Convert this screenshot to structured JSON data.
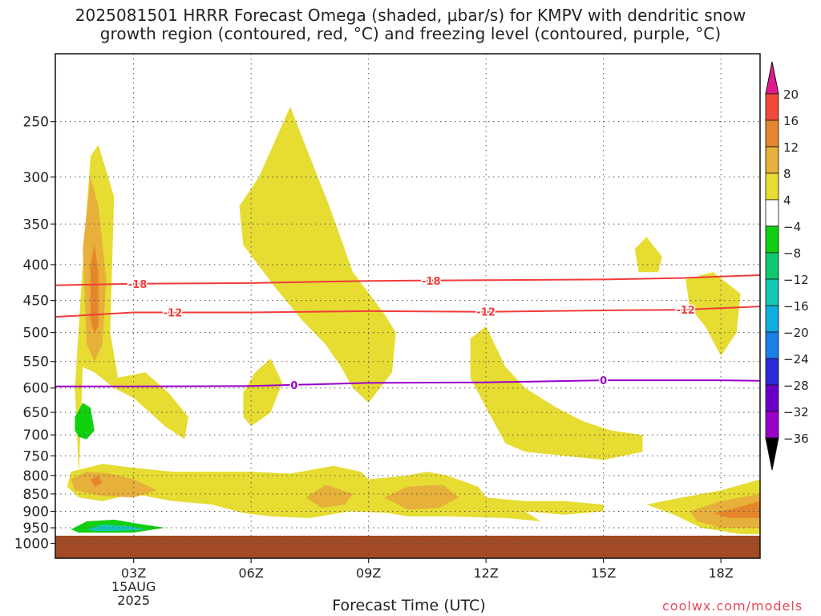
{
  "title": {
    "line1": "2025081501 HRRR Forecast Omega (shaded, μbar/s) for KMPV with dendritic snow",
    "line2": "growth region (contoured, red, °C) and freezing level (contoured, purple, °C)"
  },
  "credit": "coolwx.com/models",
  "chart_data": {
    "type": "heatmap",
    "title": "2025081501 HRRR Forecast Omega (shaded, μbar/s) for KMPV with dendritic snow growth region (contoured, red, °C) and freezing level (contoured, purple, °C)",
    "xlabel": "Forecast Time (UTC)",
    "ylabel": "",
    "x_range_hours_utc": [
      1,
      19
    ],
    "x_ticks": [
      {
        "hour": 3,
        "label": "03Z",
        "sub": [
          "15AUG",
          "2025"
        ]
      },
      {
        "hour": 6,
        "label": "06Z"
      },
      {
        "hour": 9,
        "label": "09Z"
      },
      {
        "hour": 12,
        "label": "12Z"
      },
      {
        "hour": 15,
        "label": "15Z"
      },
      {
        "hour": 18,
        "label": "18Z"
      }
    ],
    "y_scale": "log",
    "y_range_hPa": [
      1050,
      200
    ],
    "y_ticks": [
      250,
      300,
      350,
      400,
      450,
      500,
      550,
      600,
      650,
      700,
      750,
      800,
      850,
      900,
      950,
      1000
    ],
    "grid": true,
    "colorbar": {
      "levels": [
        -36,
        -32,
        -28,
        -24,
        -20,
        -16,
        -12,
        -8,
        -4,
        4,
        8,
        12,
        16,
        20
      ],
      "colors": [
        "#a7a7a7",
        "#9b00c8",
        "#6a00c8",
        "#2b2bd8",
        "#1a7fe6",
        "#10aee0",
        "#12c8b4",
        "#10c870",
        "#10d010",
        "#ffffff",
        "#e8dc32",
        "#e6b03a",
        "#e6862c",
        "#f04a3a",
        "#e01a8c"
      ]
    },
    "omega_regions": [
      {
        "level": 4,
        "color": "#e6dc32",
        "points": [
          [
            1.6,
            800
          ],
          [
            1.5,
            600
          ],
          [
            1.7,
            400
          ],
          [
            1.9,
            280
          ],
          [
            2.1,
            270
          ],
          [
            2.5,
            320
          ],
          [
            2.4,
            500
          ],
          [
            2.6,
            580
          ],
          [
            3.3,
            570
          ],
          [
            3.9,
            610
          ],
          [
            4.4,
            660
          ],
          [
            4.3,
            710
          ],
          [
            3.8,
            680
          ],
          [
            3.0,
            620
          ],
          [
            2.5,
            600
          ],
          [
            2.0,
            570
          ],
          [
            1.7,
            560
          ]
        ]
      },
      {
        "level": 8,
        "color": "#e6b03a",
        "points": [
          [
            1.8,
            520
          ],
          [
            1.7,
            380
          ],
          [
            1.9,
            300
          ],
          [
            2.1,
            330
          ],
          [
            2.3,
            420
          ],
          [
            2.2,
            520
          ],
          [
            2.0,
            550
          ]
        ]
      },
      {
        "level": 12,
        "color": "#e6862c",
        "points": [
          [
            1.9,
            480
          ],
          [
            1.9,
            400
          ],
          [
            2.0,
            375
          ],
          [
            2.1,
            410
          ],
          [
            2.1,
            490
          ],
          [
            2.0,
            500
          ]
        ]
      },
      {
        "level": 4,
        "color": "#e6dc32",
        "points": [
          [
            5.7,
            330
          ],
          [
            6.2,
            300
          ],
          [
            7.0,
            238
          ],
          [
            7.6,
            290
          ],
          [
            8.0,
            330
          ],
          [
            8.6,
            410
          ],
          [
            9.4,
            470
          ],
          [
            9.7,
            500
          ],
          [
            9.6,
            570
          ],
          [
            9.0,
            630
          ],
          [
            8.6,
            600
          ],
          [
            8.3,
            560
          ],
          [
            7.9,
            520
          ],
          [
            7.3,
            480
          ],
          [
            6.6,
            430
          ],
          [
            5.8,
            375
          ]
        ]
      },
      {
        "level": 4,
        "color": "#e6dc32",
        "points": [
          [
            5.8,
            660
          ],
          [
            5.8,
            610
          ],
          [
            6.1,
            570
          ],
          [
            6.5,
            545
          ],
          [
            6.8,
            590
          ],
          [
            6.5,
            650
          ],
          [
            6.0,
            680
          ]
        ]
      },
      {
        "level": 4,
        "color": "#e6dc32",
        "points": [
          [
            11.6,
            510
          ],
          [
            12.0,
            490
          ],
          [
            12.5,
            560
          ],
          [
            13.0,
            600
          ],
          [
            13.8,
            640
          ],
          [
            14.5,
            670
          ],
          [
            15.2,
            690
          ],
          [
            16.0,
            700
          ],
          [
            16.0,
            740
          ],
          [
            15.0,
            760
          ],
          [
            14.0,
            750
          ],
          [
            13.0,
            740
          ],
          [
            12.5,
            720
          ],
          [
            12.0,
            640
          ],
          [
            11.6,
            580
          ]
        ]
      },
      {
        "level": 4,
        "color": "#e6dc32",
        "points": [
          [
            15.8,
            380
          ],
          [
            16.1,
            365
          ],
          [
            16.5,
            390
          ],
          [
            16.4,
            410
          ],
          [
            15.9,
            410
          ]
        ]
      },
      {
        "level": 4,
        "color": "#e6dc32",
        "points": [
          [
            17.1,
            420
          ],
          [
            17.8,
            410
          ],
          [
            18.5,
            440
          ],
          [
            18.4,
            500
          ],
          [
            18.0,
            540
          ],
          [
            17.6,
            490
          ],
          [
            17.2,
            460
          ]
        ]
      },
      {
        "level": 4,
        "color": "#e6dc32",
        "points": [
          [
            1.3,
            830
          ],
          [
            1.4,
            790
          ],
          [
            2.2,
            770
          ],
          [
            3.0,
            780
          ],
          [
            4.0,
            790
          ],
          [
            5.0,
            790
          ],
          [
            6.0,
            790
          ],
          [
            7.0,
            795
          ],
          [
            8.1,
            775
          ],
          [
            8.8,
            790
          ],
          [
            9.0,
            810
          ],
          [
            10.0,
            800
          ],
          [
            10.5,
            790
          ],
          [
            11.0,
            800
          ],
          [
            11.8,
            830
          ],
          [
            12.0,
            860
          ],
          [
            13.0,
            870
          ],
          [
            14.0,
            870
          ],
          [
            15.0,
            880
          ],
          [
            15.0,
            900
          ],
          [
            14.0,
            910
          ],
          [
            13.0,
            900
          ],
          [
            13.4,
            930
          ],
          [
            12.5,
            920
          ],
          [
            11.0,
            915
          ],
          [
            10.0,
            915
          ],
          [
            9.5,
            905
          ],
          [
            8.5,
            900
          ],
          [
            7.5,
            920
          ],
          [
            6.5,
            915
          ],
          [
            5.8,
            905
          ],
          [
            5.0,
            880
          ],
          [
            4.0,
            870
          ],
          [
            3.0,
            850
          ],
          [
            2.2,
            870
          ],
          [
            1.6,
            860
          ]
        ]
      },
      {
        "level": 8,
        "color": "#e6b03a",
        "points": [
          [
            1.4,
            810
          ],
          [
            1.8,
            790
          ],
          [
            2.4,
            795
          ],
          [
            3.0,
            810
          ],
          [
            3.6,
            840
          ],
          [
            3.0,
            860
          ],
          [
            2.2,
            855
          ],
          [
            1.5,
            840
          ]
        ]
      },
      {
        "level": 8,
        "color": "#e6b03a",
        "points": [
          [
            7.4,
            860
          ],
          [
            7.9,
            825
          ],
          [
            8.6,
            850
          ],
          [
            8.4,
            880
          ],
          [
            7.8,
            890
          ]
        ]
      },
      {
        "level": 8,
        "color": "#e6b03a",
        "points": [
          [
            9.4,
            860
          ],
          [
            10.0,
            830
          ],
          [
            10.9,
            825
          ],
          [
            11.3,
            860
          ],
          [
            10.8,
            890
          ],
          [
            10.0,
            895
          ]
        ]
      },
      {
        "level": 12,
        "color": "#e6862c",
        "points": [
          [
            1.9,
            810
          ],
          [
            2.1,
            800
          ],
          [
            2.2,
            820
          ],
          [
            2.0,
            830
          ]
        ]
      },
      {
        "level": 4,
        "color": "#e6dc32",
        "points": [
          [
            16.1,
            880
          ],
          [
            17.0,
            860
          ],
          [
            18.0,
            840
          ],
          [
            19.0,
            810
          ],
          [
            19.0,
            970
          ],
          [
            18.5,
            970
          ],
          [
            17.5,
            950
          ],
          [
            16.8,
            910
          ]
        ]
      },
      {
        "level": 8,
        "color": "#e6b03a",
        "points": [
          [
            17.2,
            900
          ],
          [
            18.0,
            870
          ],
          [
            19.0,
            850
          ],
          [
            19.0,
            950
          ],
          [
            18.0,
            950
          ],
          [
            17.4,
            930
          ]
        ]
      },
      {
        "level": 12,
        "color": "#e6862c",
        "points": [
          [
            17.8,
            905
          ],
          [
            18.4,
            890
          ],
          [
            19.0,
            870
          ],
          [
            19.0,
            920
          ],
          [
            18.2,
            920
          ]
        ]
      },
      {
        "level": -4,
        "color": "#10d010",
        "points": [
          [
            1.5,
            690
          ],
          [
            1.5,
            660
          ],
          [
            1.7,
            630
          ],
          [
            1.9,
            640
          ],
          [
            2.0,
            690
          ],
          [
            1.8,
            710
          ],
          [
            1.6,
            705
          ]
        ]
      },
      {
        "level": -4,
        "color": "#10d010",
        "points": [
          [
            1.4,
            955
          ],
          [
            1.8,
            930
          ],
          [
            2.5,
            925
          ],
          [
            3.0,
            935
          ],
          [
            3.8,
            950
          ],
          [
            3.0,
            965
          ],
          [
            2.2,
            965
          ],
          [
            1.6,
            965
          ]
        ]
      },
      {
        "level": -8,
        "color": "#12c8b4",
        "points": [
          [
            1.8,
            955
          ],
          [
            2.2,
            940
          ],
          [
            2.9,
            945
          ],
          [
            3.3,
            955
          ],
          [
            2.6,
            960
          ],
          [
            2.0,
            960
          ]
        ]
      }
    ],
    "contours": [
      {
        "name": "-18",
        "color": "#f03c3c",
        "label_hours": [
          3.1,
          10.6
        ],
        "points": [
          [
            1,
            428
          ],
          [
            3,
            426
          ],
          [
            6,
            425
          ],
          [
            9,
            422
          ],
          [
            12,
            421
          ],
          [
            15,
            420
          ],
          [
            17,
            418
          ],
          [
            19,
            414
          ]
        ]
      },
      {
        "name": "-12",
        "color": "#f03c3c",
        "label_hours": [
          4.0,
          12.0,
          17.1
        ],
        "points": [
          [
            1,
            475
          ],
          [
            3,
            468
          ],
          [
            6,
            468
          ],
          [
            9,
            466
          ],
          [
            12,
            467
          ],
          [
            15,
            465
          ],
          [
            17,
            464
          ],
          [
            19,
            459
          ]
        ]
      },
      {
        "name": "0",
        "color": "#9b00c8",
        "label_hours": [
          7.1,
          15.0
        ],
        "points": [
          [
            1,
            597
          ],
          [
            3,
            597
          ],
          [
            6,
            596
          ],
          [
            9,
            590
          ],
          [
            12,
            589
          ],
          [
            15,
            585
          ],
          [
            18,
            585
          ],
          [
            19,
            586
          ]
        ]
      }
    ],
    "ground": {
      "color": "#a24a24",
      "from_hPa": 975,
      "label": ""
    }
  }
}
